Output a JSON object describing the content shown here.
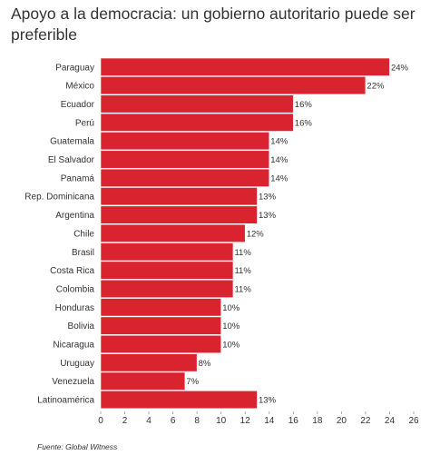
{
  "title": "Apoyo a la democracia: un gobierno autoritario puede ser preferible",
  "source": "Fuente: Global Witness",
  "colors": {
    "bar": "#d9232e",
    "bar_stroke": "#ffffff",
    "text": "#333333",
    "axis": "#999999"
  },
  "chart_data": {
    "type": "bar",
    "orientation": "horizontal",
    "title": "Apoyo a la democracia: un gobierno autoritario puede ser preferible",
    "xlabel": "",
    "ylabel": "",
    "xlim": [
      0,
      26
    ],
    "xticks": [
      0,
      2,
      4,
      6,
      8,
      10,
      12,
      14,
      16,
      18,
      20,
      22,
      24,
      26
    ],
    "grid": false,
    "legend": "none",
    "value_suffix": "%",
    "categories": [
      "Paraguay",
      "México",
      "Ecuador",
      "Perú",
      "Guatemala",
      "El Salvador",
      "Panamá",
      "Rep. Dominicana",
      "Argentina",
      "Chile",
      "Brasil",
      "Costa Rica",
      "Colombia",
      "Honduras",
      "Bolivia",
      "Nicaragua",
      "Uruguay",
      "Venezuela",
      "Latinoamérica"
    ],
    "values": [
      24,
      22,
      16,
      16,
      14,
      14,
      14,
      13,
      13,
      12,
      11,
      11,
      11,
      10,
      10,
      10,
      8,
      7,
      13
    ]
  }
}
